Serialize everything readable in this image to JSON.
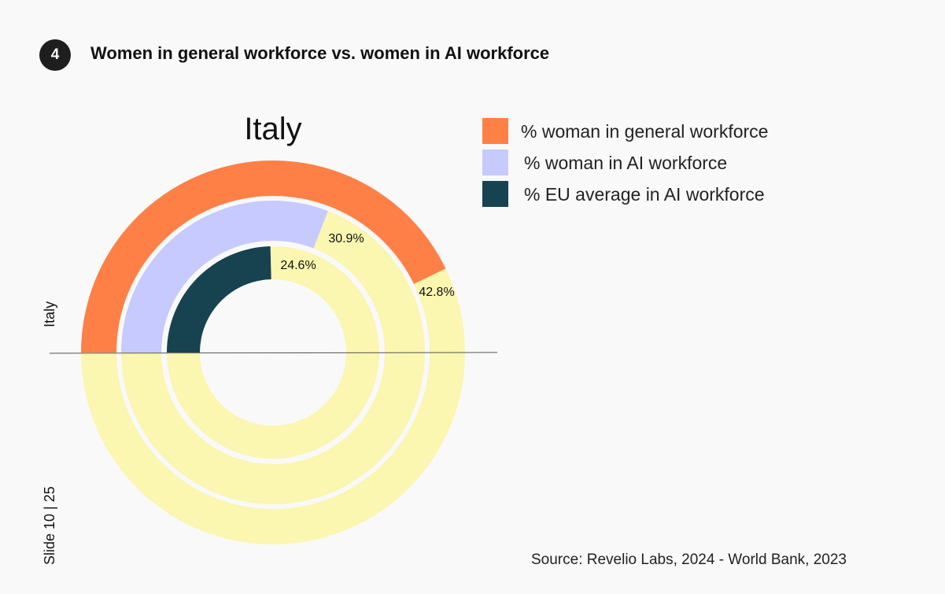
{
  "header": {
    "badge": "4",
    "title": "Women in general workforce vs. women in AI workforce"
  },
  "side_labels": {
    "category": "Italy",
    "slide": "Slide  10  |  25"
  },
  "source": "Source: Revelio Labs, 2024 - World Bank, 2023",
  "chart_data": {
    "type": "pie",
    "subtype": "concentric-donut",
    "title": "Italy",
    "legend_placement": "top-right",
    "series": [
      {
        "name": "% woman in general workforce",
        "value": 42.8,
        "label": "42.8%",
        "color": "#ff8047",
        "ring": "outer"
      },
      {
        "name": "% woman in AI workforce",
        "value": 30.9,
        "label": "30.9%",
        "color": "#c7caff",
        "ring": "middle"
      },
      {
        "name": "% EU average in AI workforce",
        "value": 24.6,
        "label": "24.6%",
        "color": "#16434f",
        "ring": "inner"
      }
    ],
    "remainder_color": "#fbf6b0"
  }
}
